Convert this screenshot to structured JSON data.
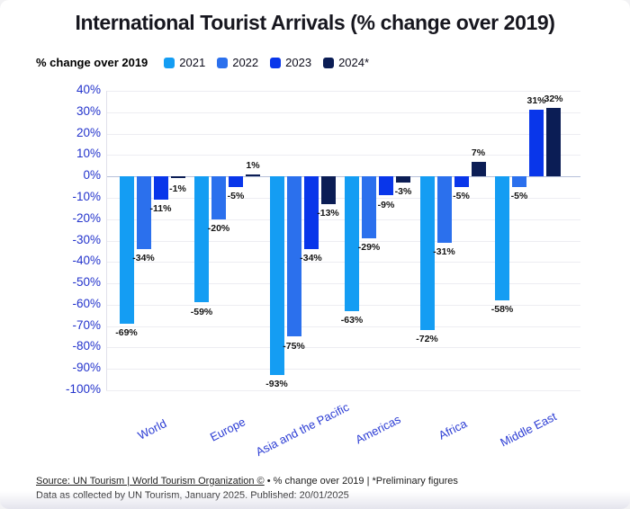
{
  "title": "International Tourist Arrivals (% change over 2019)",
  "legend": {
    "label": "% change over 2019"
  },
  "chart_data": {
    "type": "bar",
    "title": "International Tourist Arrivals (% change over 2019)",
    "categories": [
      "World",
      "Europe",
      "Asia and the Pacific",
      "Americas",
      "Africa",
      "Middle East"
    ],
    "series": [
      {
        "name": "2021",
        "color": "#149DF3",
        "values": [
          -69,
          -59,
          -93,
          -63,
          -72,
          -58
        ]
      },
      {
        "name": "2022",
        "color": "#2B70ED",
        "values": [
          -34,
          -20,
          -75,
          -29,
          -31,
          -5
        ]
      },
      {
        "name": "2023",
        "color": "#0936EA",
        "values": [
          -11,
          -5,
          -34,
          -9,
          -5,
          31
        ]
      },
      {
        "name": "2024*",
        "color": "#0B1D55",
        "values": [
          -1,
          1,
          -13,
          -3,
          7,
          32
        ]
      }
    ],
    "xlabel": "",
    "ylabel": "",
    "ylim": [
      -100,
      40
    ],
    "ytick_step": 10,
    "ytick_suffix": "%",
    "grid": true,
    "legend_position": "top-left",
    "value_label_suffix": "%"
  },
  "footer": {
    "source_underlined": "Source: UN Tourism | World Tourism Organization ©",
    "source_rest": " • % change over 2019 | *Preliminary figures",
    "line2": "Data as collected by UN Tourism, January 2025. Published: 20/01/2025"
  }
}
